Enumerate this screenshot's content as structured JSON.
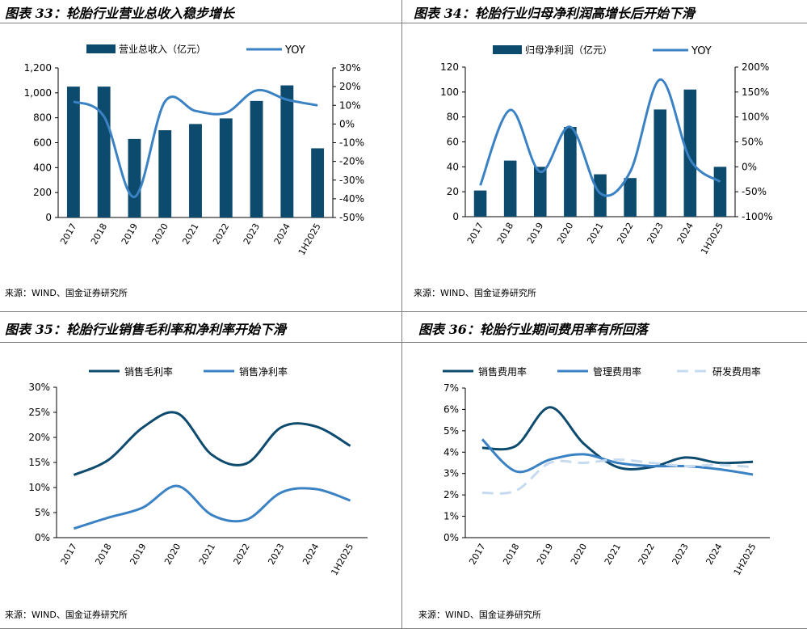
{
  "colors": {
    "bar": "#0c4a6e",
    "series1": "#0c4a6e",
    "series2": "#3b82c4",
    "series3": "#c7dbf0"
  },
  "source_text": "来源：WIND、国金证券研究所",
  "chart_data": [
    {
      "type": "bar+line",
      "title": "图表 33：轮胎行业营业总收入稳步增长",
      "categories": [
        "2017",
        "2018",
        "2019",
        "2020",
        "2021",
        "2022",
        "2023",
        "2024",
        "1H2025"
      ],
      "bar_series": {
        "name": "营业总收入（亿元）",
        "values": [
          1050,
          1050,
          630,
          700,
          750,
          795,
          935,
          1060,
          555
        ]
      },
      "line_series": {
        "name": "YOY",
        "values": [
          12,
          4,
          -39,
          12,
          7,
          6,
          18,
          13,
          10
        ]
      },
      "y_left": {
        "ticks": [
          0,
          200,
          400,
          600,
          800,
          1000,
          1200
        ],
        "tick_labels": [
          "0",
          "200",
          "400",
          "600",
          "800",
          "1,000",
          "1,200"
        ],
        "ylim": [
          0,
          1200
        ]
      },
      "y_right": {
        "ticks": [
          -50,
          -40,
          -30,
          -20,
          -10,
          0,
          10,
          20,
          30
        ],
        "tick_labels": [
          "-50%",
          "-40%",
          "-30%",
          "-20%",
          "-10%",
          "0%",
          "10%",
          "20%",
          "30%"
        ],
        "ylim": [
          -50,
          30
        ]
      }
    },
    {
      "type": "bar+line",
      "title": "图表 34：轮胎行业归母净利润高增长后开始下滑",
      "categories": [
        "2017",
        "2018",
        "2019",
        "2020",
        "2021",
        "2022",
        "2023",
        "2024",
        "1H2025"
      ],
      "bar_series": {
        "name": "归母净利润（亿元）",
        "values": [
          21,
          45,
          40,
          72,
          34,
          31,
          86,
          102,
          40
        ]
      },
      "line_series": {
        "name": "YOY",
        "values": [
          -37,
          114,
          -10,
          80,
          -53,
          -10,
          175,
          15,
          -30
        ]
      },
      "y_left": {
        "ticks": [
          0,
          20,
          40,
          60,
          80,
          100,
          120
        ],
        "tick_labels": [
          "0",
          "20",
          "40",
          "60",
          "80",
          "100",
          "120"
        ],
        "ylim": [
          0,
          120
        ]
      },
      "y_right": {
        "ticks": [
          -100,
          -50,
          0,
          50,
          100,
          150,
          200
        ],
        "tick_labels": [
          "-100%",
          "-50%",
          "0%",
          "50%",
          "100%",
          "150%",
          "200%"
        ],
        "ylim": [
          -100,
          200
        ]
      }
    },
    {
      "type": "line",
      "title": "图表 35：轮胎行业销售毛利率和净利率开始下滑",
      "categories": [
        "2017",
        "2018",
        "2019",
        "2020",
        "2021",
        "2022",
        "2023",
        "2024",
        "1H2025"
      ],
      "series": [
        {
          "name": "销售毛利率",
          "values": [
            12.5,
            15.5,
            22.0,
            24.8,
            16.5,
            14.8,
            22.0,
            22.2,
            18.3
          ]
        },
        {
          "name": "销售净利率",
          "values": [
            1.8,
            4.0,
            6.0,
            10.3,
            4.5,
            3.6,
            9.0,
            9.7,
            7.4
          ]
        }
      ],
      "y": {
        "ticks": [
          0,
          5,
          10,
          15,
          20,
          25,
          30
        ],
        "tick_labels": [
          "0%",
          "5%",
          "10%",
          "15%",
          "20%",
          "25%",
          "30%"
        ],
        "ylim": [
          0,
          30
        ]
      }
    },
    {
      "type": "line",
      "title": "图表 36：轮胎行业期间费用率有所回落",
      "categories": [
        "2017",
        "2018",
        "2019",
        "2020",
        "2021",
        "2022",
        "2023",
        "2024",
        "1H2025"
      ],
      "series": [
        {
          "name": "销售费用率",
          "values": [
            4.2,
            4.3,
            6.1,
            4.4,
            3.3,
            3.3,
            3.75,
            3.5,
            3.55
          ]
        },
        {
          "name": "管理费用率",
          "values": [
            4.6,
            3.1,
            3.65,
            3.9,
            3.5,
            3.35,
            3.35,
            3.2,
            2.95
          ]
        },
        {
          "name": "研发费用率",
          "values": [
            2.1,
            2.2,
            3.5,
            3.5,
            3.65,
            3.5,
            3.35,
            3.4,
            3.3
          ]
        }
      ],
      "y": {
        "ticks": [
          0,
          1,
          2,
          3,
          4,
          5,
          6,
          7
        ],
        "tick_labels": [
          "0%",
          "1%",
          "2%",
          "3%",
          "4%",
          "5%",
          "6%",
          "7%"
        ],
        "ylim": [
          0,
          7
        ]
      }
    }
  ]
}
